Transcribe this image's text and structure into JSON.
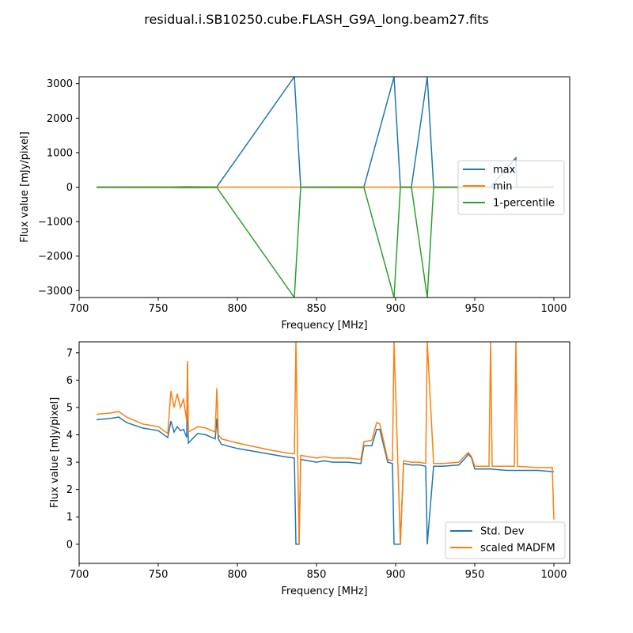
{
  "figure": {
    "title": "residual.i.SB10250.cube.FLASH_G9A_long.beam27.fits"
  },
  "colors": {
    "blue": "#1f77b4",
    "orange": "#ff7f0e",
    "green": "#2ca02c"
  },
  "chart_data": [
    {
      "type": "line",
      "xlabel": "Frequency [MHz]",
      "ylabel": "Flux value [mJy/pixel]",
      "xlim": [
        700,
        1010
      ],
      "ylim": [
        -3200,
        3200
      ],
      "xticks": [
        700,
        750,
        800,
        850,
        900,
        950,
        1000
      ],
      "yticks": [
        -3000,
        -2000,
        -1000,
        0,
        1000,
        2000,
        3000
      ],
      "legend_position": "center-right",
      "series": [
        {
          "name": "max",
          "color_key": "blue",
          "x": [
            711,
            758,
            768,
            787,
            836,
            840,
            880,
            899,
            903,
            910,
            920,
            924,
            960,
            976,
            976.5,
            977,
            1000
          ],
          "y": [
            5,
            7,
            12,
            6,
            3200,
            6,
            8,
            3200,
            7,
            6,
            3200,
            6,
            6,
            850,
            5,
            5,
            4
          ]
        },
        {
          "name": "min",
          "color_key": "orange",
          "x": [
            711,
            800,
            900,
            1000
          ],
          "y": [
            0,
            0,
            0,
            0
          ]
        },
        {
          "name": "1-percentile",
          "color_key": "green",
          "x": [
            711,
            758,
            768,
            787,
            836,
            840,
            880,
            899,
            903,
            910,
            920,
            924,
            960,
            1000
          ],
          "y": [
            -10,
            -12,
            -18,
            -12,
            -3200,
            -10,
            -12,
            -3200,
            -10,
            -10,
            -3200,
            -10,
            -8,
            -8
          ]
        }
      ]
    },
    {
      "type": "line",
      "xlabel": "Frequency [MHz]",
      "ylabel": "Flux value [mJy/pixel]",
      "xlim": [
        700,
        1010
      ],
      "ylim": [
        -0.7,
        7.4
      ],
      "xticks": [
        700,
        750,
        800,
        850,
        900,
        950,
        1000
      ],
      "yticks": [
        0,
        1,
        2,
        3,
        4,
        5,
        6,
        7
      ],
      "legend_position": "lower-right",
      "series": [
        {
          "name": "Std. Dev",
          "color_key": "blue",
          "x": [
            711,
            720,
            725,
            730,
            740,
            750,
            756,
            758,
            760,
            762,
            764,
            766,
            768,
            768.5,
            769,
            775,
            780,
            786,
            787,
            788,
            790,
            800,
            820,
            830,
            836,
            837,
            839,
            840,
            845,
            850,
            855,
            860,
            870,
            878,
            880,
            885,
            888,
            890,
            895,
            898,
            899,
            903,
            905,
            910,
            915,
            919,
            920,
            924,
            930,
            940,
            944,
            946,
            948,
            950,
            960,
            970,
            980,
            990,
            1000
          ],
          "y": [
            4.55,
            4.6,
            4.65,
            4.45,
            4.25,
            4.15,
            3.9,
            4.5,
            4.1,
            4.3,
            4.15,
            4.2,
            3.9,
            6.6,
            3.7,
            4.05,
            4.0,
            3.85,
            4.6,
            3.85,
            3.65,
            3.5,
            3.3,
            3.2,
            3.15,
            0,
            0,
            3.1,
            3.05,
            3.0,
            3.05,
            3.0,
            3.0,
            2.95,
            3.6,
            3.6,
            4.2,
            4.2,
            3.0,
            2.95,
            0,
            0,
            2.95,
            2.9,
            2.9,
            2.85,
            0,
            2.85,
            2.85,
            2.9,
            3.15,
            3.3,
            3.15,
            2.75,
            2.75,
            2.7,
            2.7,
            2.7,
            2.65
          ]
        },
        {
          "name": "scaled MADFM",
          "color_key": "orange",
          "x": [
            711,
            720,
            725,
            730,
            740,
            750,
            756,
            758,
            760,
            762,
            764,
            766,
            768,
            768.5,
            769,
            775,
            780,
            786,
            787,
            788,
            790,
            800,
            820,
            830,
            836,
            837,
            839,
            840,
            845,
            850,
            855,
            860,
            870,
            878,
            880,
            885,
            888,
            890,
            895,
            898,
            899,
            903,
            905,
            910,
            915,
            919,
            920,
            924,
            930,
            940,
            944,
            946,
            948,
            950,
            959,
            960,
            961,
            975,
            976,
            977,
            990,
            999,
            1000
          ],
          "y": [
            4.75,
            4.8,
            4.85,
            4.65,
            4.4,
            4.3,
            4.05,
            5.6,
            5.0,
            5.5,
            5.0,
            5.3,
            4.5,
            6.7,
            4.1,
            4.3,
            4.25,
            4.1,
            5.7,
            4.0,
            3.85,
            3.7,
            3.45,
            3.35,
            3.3,
            7.4,
            0,
            3.25,
            3.2,
            3.15,
            3.2,
            3.15,
            3.15,
            3.1,
            3.75,
            3.8,
            4.45,
            4.4,
            3.1,
            3.05,
            7.4,
            0,
            3.05,
            3.0,
            3.0,
            2.95,
            7.4,
            2.95,
            2.95,
            3.0,
            3.25,
            3.35,
            3.2,
            2.85,
            2.85,
            7.4,
            2.85,
            2.85,
            7.4,
            2.85,
            2.8,
            2.8,
            0.9
          ]
        }
      ]
    }
  ]
}
